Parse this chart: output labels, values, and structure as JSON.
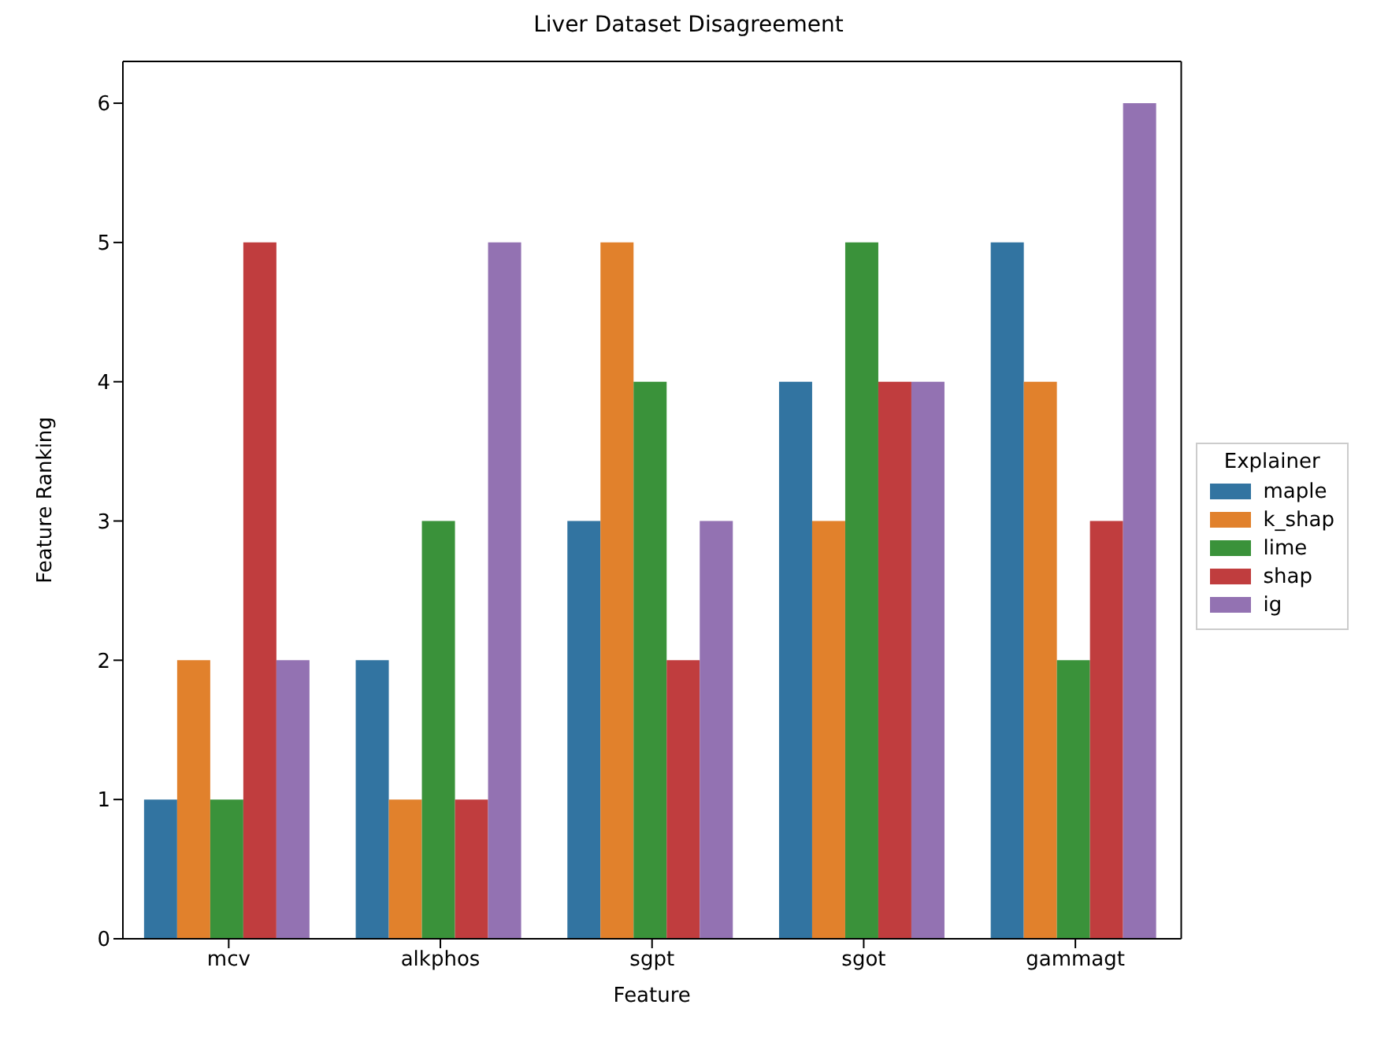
{
  "chart_data": {
    "type": "bar",
    "title": "Liver Dataset Disagreement",
    "xlabel": "Feature",
    "ylabel": "Feature Ranking",
    "legend_title": "Explainer",
    "categories": [
      "mcv",
      "alkphos",
      "sgpt",
      "sgot",
      "gammagt"
    ],
    "series": [
      {
        "name": "maple",
        "color": "#3274a1",
        "values": [
          1,
          2,
          3,
          4,
          5
        ]
      },
      {
        "name": "k_shap",
        "color": "#e1812c",
        "values": [
          2,
          1,
          5,
          3,
          4
        ]
      },
      {
        "name": "lime",
        "color": "#3a923a",
        "values": [
          1,
          3,
          4,
          5,
          2
        ]
      },
      {
        "name": "shap",
        "color": "#c03d3e",
        "values": [
          5,
          1,
          2,
          4,
          3
        ]
      },
      {
        "name": "ig",
        "color": "#9372b2",
        "values": [
          2,
          5,
          3,
          4,
          6
        ]
      }
    ],
    "ylim": [
      0,
      6.3
    ],
    "yticks": [
      0,
      1,
      2,
      3,
      4,
      5,
      6
    ],
    "grid": false,
    "legend": "right"
  }
}
